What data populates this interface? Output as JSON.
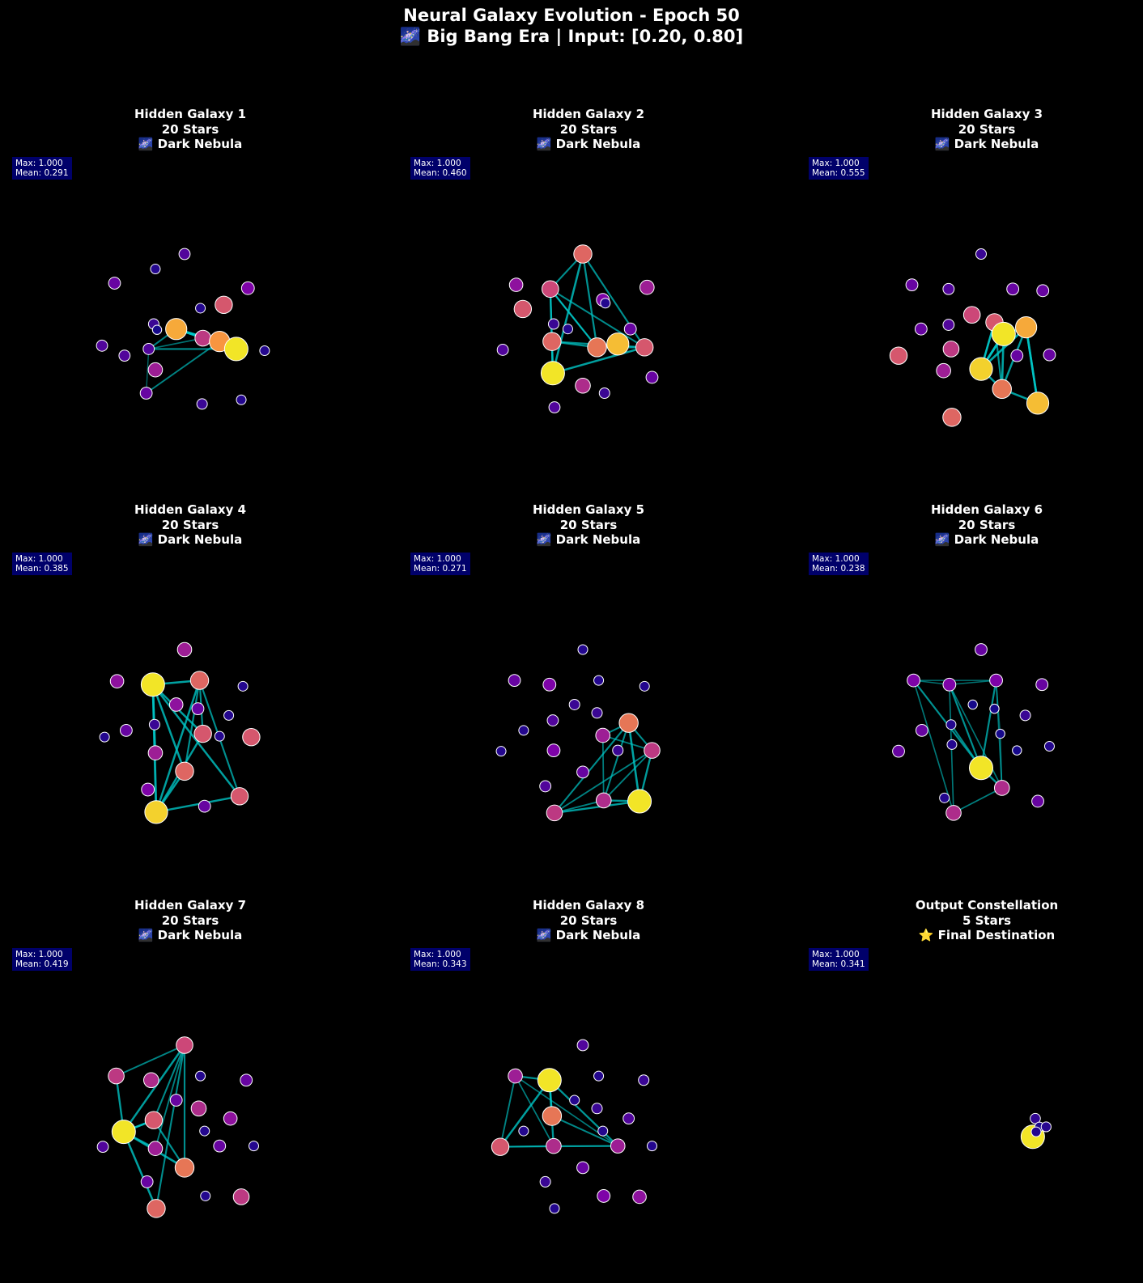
{
  "title_line1": "Neural Galaxy Evolution - Epoch 50",
  "title_line2": "🌌 Big Bang Era | Input: [0.20, 0.80]",
  "chart_data": [
    {
      "type": "scatter",
      "title": [
        "Hidden Galaxy 1",
        "20 Stars",
        "🌌 Dark Nebula"
      ],
      "stats": {
        "max": "Max: 1.000",
        "mean": "Mean: 0.291"
      },
      "nodes": [
        [
          0.0,
          -1.0,
          0.15
        ],
        [
          0.47,
          -0.39,
          0.55
        ],
        [
          -0.84,
          -0.65,
          0.2
        ],
        [
          -0.1,
          -0.1,
          0.8
        ],
        [
          0.76,
          -0.59,
          0.25
        ],
        [
          0.96,
          0.16,
          0.05
        ],
        [
          0.22,
          0.01,
          0.45
        ],
        [
          0.42,
          0.05,
          0.75
        ],
        [
          -0.72,
          0.22,
          0.15
        ],
        [
          -0.37,
          -0.16,
          0.1
        ],
        [
          -0.35,
          -0.82,
          0.05
        ],
        [
          -0.46,
          0.67,
          0.2
        ],
        [
          -0.33,
          -0.09,
          0.02
        ],
        [
          -0.35,
          0.39,
          0.35
        ],
        [
          0.68,
          0.75,
          0.05
        ],
        [
          0.21,
          0.8,
          0.1
        ],
        [
          -0.43,
          0.14,
          0.15
        ],
        [
          0.19,
          -0.35,
          0.05
        ],
        [
          0.62,
          0.14,
          0.95
        ],
        [
          -0.99,
          0.1,
          0.15
        ]
      ],
      "edges": [
        [
          3,
          18
        ],
        [
          18,
          16
        ],
        [
          16,
          3
        ],
        [
          3,
          7
        ],
        [
          18,
          7
        ],
        [
          16,
          6
        ],
        [
          6,
          3
        ],
        [
          6,
          18
        ],
        [
          16,
          11
        ],
        [
          11,
          7
        ],
        [
          7,
          3
        ],
        [
          18,
          6
        ]
      ]
    },
    {
      "type": "scatter",
      "title": [
        "Hidden Galaxy 2",
        "20 Stars",
        "🌌 Dark Nebula"
      ],
      "stats": {
        "max": "Max: 1.000",
        "mean": "Mean: 0.460"
      },
      "nodes": [
        [
          0.0,
          -1.0,
          0.6
        ],
        [
          0.24,
          -0.45,
          0.25
        ],
        [
          -0.8,
          -0.63,
          0.3
        ],
        [
          -0.39,
          -0.58,
          0.5
        ],
        [
          0.77,
          -0.6,
          0.35
        ],
        [
          0.57,
          -0.1,
          0.2
        ],
        [
          0.17,
          0.12,
          0.65
        ],
        [
          0.42,
          0.08,
          0.85
        ],
        [
          -0.18,
          -0.1,
          0.05
        ],
        [
          -0.35,
          -0.16,
          0.1
        ],
        [
          -0.37,
          0.05,
          0.6
        ],
        [
          -0.96,
          0.15,
          0.15
        ],
        [
          -0.36,
          0.43,
          0.95
        ],
        [
          0.0,
          0.58,
          0.4
        ],
        [
          0.74,
          0.12,
          0.55
        ],
        [
          -0.72,
          -0.34,
          0.55
        ],
        [
          0.27,
          -0.41,
          0.05
        ],
        [
          0.83,
          0.48,
          0.2
        ],
        [
          -0.34,
          0.84,
          0.15
        ],
        [
          0.26,
          0.67,
          0.1
        ]
      ],
      "edges": [
        [
          0,
          3
        ],
        [
          0,
          14
        ],
        [
          3,
          14
        ],
        [
          3,
          12
        ],
        [
          12,
          14
        ],
        [
          0,
          12
        ],
        [
          3,
          10
        ],
        [
          10,
          14
        ],
        [
          6,
          14
        ],
        [
          6,
          3
        ],
        [
          6,
          10
        ],
        [
          0,
          6
        ],
        [
          12,
          10
        ],
        [
          3,
          6
        ]
      ]
    },
    {
      "type": "scatter",
      "title": [
        "Hidden Galaxy 3",
        "20 Stars",
        "🌌 Dark Nebula"
      ],
      "stats": {
        "max": "Max: 1.000",
        "mean": "Mean: 0.555"
      },
      "nodes": [
        [
          0.0,
          -1.0,
          0.1
        ],
        [
          0.38,
          -0.58,
          0.2
        ],
        [
          -0.83,
          -0.63,
          0.2
        ],
        [
          -0.39,
          -0.58,
          0.15
        ],
        [
          0.74,
          -0.56,
          0.2
        ],
        [
          0.16,
          -0.18,
          0.55
        ],
        [
          0.27,
          -0.04,
          0.95
        ],
        [
          0.54,
          -0.12,
          0.8
        ],
        [
          -0.39,
          -0.15,
          0.15
        ],
        [
          -0.72,
          -0.1,
          0.2
        ],
        [
          -0.36,
          0.14,
          0.45
        ],
        [
          -0.99,
          0.22,
          0.55
        ],
        [
          0.0,
          0.38,
          0.9
        ],
        [
          -0.45,
          0.4,
          0.35
        ],
        [
          0.43,
          0.22,
          0.2
        ],
        [
          0.82,
          0.21,
          0.2
        ],
        [
          0.25,
          0.62,
          0.65
        ],
        [
          0.68,
          0.79,
          0.85
        ],
        [
          -0.35,
          0.96,
          0.6
        ],
        [
          -0.11,
          -0.27,
          0.5
        ]
      ],
      "edges": [
        [
          12,
          6
        ],
        [
          12,
          7
        ],
        [
          12,
          5
        ],
        [
          6,
          7
        ],
        [
          6,
          16
        ],
        [
          7,
          16
        ],
        [
          7,
          17
        ],
        [
          16,
          17
        ],
        [
          5,
          12
        ],
        [
          5,
          16
        ],
        [
          6,
          5
        ],
        [
          12,
          16
        ],
        [
          6,
          12
        ],
        [
          17,
          7
        ]
      ]
    },
    {
      "type": "scatter",
      "title": [
        "Hidden Galaxy 4",
        "20 Stars",
        "🌌 Dark Nebula"
      ],
      "stats": {
        "max": "Max: 1.000",
        "mean": "Mean: 0.385"
      },
      "nodes": [
        [
          0.0,
          -1.0,
          0.35
        ],
        [
          0.18,
          -0.63,
          0.6
        ],
        [
          -0.81,
          -0.62,
          0.3
        ],
        [
          -0.38,
          -0.58,
          0.95
        ],
        [
          0.7,
          -0.56,
          0.05
        ],
        [
          -0.1,
          -0.34,
          0.3
        ],
        [
          0.16,
          -0.29,
          0.2
        ],
        [
          0.53,
          -0.21,
          0.05
        ],
        [
          -0.7,
          -0.03,
          0.2
        ],
        [
          0.22,
          0.01,
          0.55
        ],
        [
          -0.35,
          0.24,
          0.35
        ],
        [
          -0.96,
          0.05,
          0.05
        ],
        [
          0.0,
          0.46,
          0.6
        ],
        [
          -0.36,
          -0.1,
          0.1
        ],
        [
          0.42,
          0.04,
          0.05
        ],
        [
          0.8,
          0.05,
          0.55
        ],
        [
          0.24,
          0.88,
          0.2
        ],
        [
          -0.44,
          0.68,
          0.25
        ],
        [
          -0.34,
          0.95,
          0.9
        ],
        [
          0.66,
          0.76,
          0.55
        ]
      ],
      "edges": [
        [
          3,
          1
        ],
        [
          3,
          18
        ],
        [
          18,
          1
        ],
        [
          18,
          19
        ],
        [
          3,
          19
        ],
        [
          1,
          19
        ],
        [
          3,
          9
        ],
        [
          9,
          18
        ],
        [
          1,
          12
        ],
        [
          12,
          3
        ],
        [
          1,
          9
        ],
        [
          18,
          12
        ],
        [
          3,
          10
        ]
      ]
    },
    {
      "type": "scatter",
      "title": [
        "Hidden Galaxy 5",
        "20 Stars",
        "🌌 Dark Nebula"
      ],
      "stats": {
        "max": "Max: 1.000",
        "mean": "Mean: 0.271"
      },
      "nodes": [
        [
          0.0,
          -1.0,
          0.05
        ],
        [
          0.19,
          -0.63,
          0.05
        ],
        [
          -0.82,
          -0.63,
          0.2
        ],
        [
          -0.4,
          -0.58,
          0.25
        ],
        [
          0.74,
          -0.56,
          0.05
        ],
        [
          -0.1,
          -0.34,
          0.1
        ],
        [
          0.17,
          -0.24,
          0.1
        ],
        [
          0.55,
          -0.12,
          0.65
        ],
        [
          -0.36,
          -0.15,
          0.15
        ],
        [
          -0.71,
          -0.03,
          0.05
        ],
        [
          0.24,
          0.03,
          0.35
        ],
        [
          0.42,
          0.21,
          0.1
        ],
        [
          -0.35,
          0.21,
          0.25
        ],
        [
          0.83,
          0.21,
          0.45
        ],
        [
          0.0,
          0.47,
          0.2
        ],
        [
          -0.45,
          0.64,
          0.15
        ],
        [
          0.25,
          0.81,
          0.4
        ],
        [
          0.68,
          0.82,
          0.95
        ],
        [
          -0.34,
          0.96,
          0.45
        ],
        [
          -0.98,
          0.22,
          0.05
        ]
      ],
      "edges": [
        [
          7,
          10
        ],
        [
          7,
          13
        ],
        [
          7,
          17
        ],
        [
          13,
          17
        ],
        [
          17,
          18
        ],
        [
          18,
          16
        ],
        [
          16,
          13
        ],
        [
          10,
          16
        ],
        [
          16,
          17
        ],
        [
          7,
          16
        ],
        [
          13,
          18
        ],
        [
          18,
          7
        ],
        [
          10,
          13
        ]
      ]
    },
    {
      "type": "scatter",
      "title": [
        "Hidden Galaxy 6",
        "20 Stars",
        "🌌 Dark Nebula"
      ],
      "stats": {
        "max": "Max: 1.000",
        "mean": "Mean: 0.238"
      },
      "nodes": [
        [
          0.0,
          -1.0,
          0.2
        ],
        [
          0.18,
          -0.63,
          0.25
        ],
        [
          -0.81,
          -0.63,
          0.25
        ],
        [
          -0.38,
          -0.58,
          0.25
        ],
        [
          0.73,
          -0.58,
          0.2
        ],
        [
          -0.1,
          -0.34,
          0.02
        ],
        [
          0.16,
          -0.29,
          0.02
        ],
        [
          0.53,
          -0.21,
          0.1
        ],
        [
          -0.71,
          -0.03,
          0.2
        ],
        [
          0.23,
          0.01,
          0.02
        ],
        [
          -0.35,
          0.14,
          0.05
        ],
        [
          -0.99,
          0.22,
          0.2
        ],
        [
          0.0,
          0.42,
          0.95
        ],
        [
          -0.36,
          -0.1,
          0.05
        ],
        [
          0.43,
          0.21,
          0.02
        ],
        [
          0.82,
          0.16,
          0.05
        ],
        [
          0.25,
          0.66,
          0.4
        ],
        [
          -0.44,
          0.78,
          0.05
        ],
        [
          -0.33,
          0.96,
          0.4
        ],
        [
          0.68,
          0.82,
          0.2
        ]
      ],
      "edges": [
        [
          2,
          12
        ],
        [
          2,
          1
        ],
        [
          3,
          12
        ],
        [
          3,
          16
        ],
        [
          1,
          16
        ],
        [
          1,
          12
        ],
        [
          3,
          18
        ],
        [
          18,
          16
        ],
        [
          2,
          3
        ],
        [
          1,
          9
        ],
        [
          9,
          16
        ],
        [
          3,
          1
        ],
        [
          12,
          16
        ],
        [
          13,
          12
        ],
        [
          2,
          18
        ]
      ]
    },
    {
      "type": "scatter",
      "title": [
        "Hidden Galaxy 7",
        "20 Stars",
        "🌌 Dark Nebula"
      ],
      "stats": {
        "max": "Max: 1.000",
        "mean": "Mean: 0.419"
      },
      "nodes": [
        [
          0.0,
          -1.0,
          0.5
        ],
        [
          0.19,
          -0.63,
          0.05
        ],
        [
          -0.82,
          -0.63,
          0.45
        ],
        [
          -0.4,
          -0.58,
          0.4
        ],
        [
          0.74,
          -0.58,
          0.2
        ],
        [
          -0.1,
          -0.34,
          0.2
        ],
        [
          0.17,
          -0.24,
          0.4
        ],
        [
          0.55,
          -0.12,
          0.3
        ],
        [
          -0.37,
          -0.1,
          0.55
        ],
        [
          0.24,
          0.03,
          0.05
        ],
        [
          -0.73,
          0.04,
          0.95
        ],
        [
          0.42,
          0.21,
          0.2
        ],
        [
          -0.35,
          0.24,
          0.35
        ],
        [
          0.83,
          0.21,
          0.05
        ],
        [
          0.0,
          0.47,
          0.65
        ],
        [
          -0.45,
          0.64,
          0.2
        ],
        [
          0.25,
          0.81,
          0.05
        ],
        [
          0.68,
          0.82,
          0.45
        ],
        [
          -0.34,
          0.96,
          0.6
        ],
        [
          -0.98,
          0.22,
          0.15
        ]
      ],
      "edges": [
        [
          0,
          2
        ],
        [
          0,
          10
        ],
        [
          2,
          10
        ],
        [
          10,
          8
        ],
        [
          8,
          0
        ],
        [
          0,
          14
        ],
        [
          10,
          14
        ],
        [
          0,
          18
        ],
        [
          10,
          18
        ],
        [
          8,
          14
        ],
        [
          0,
          12
        ],
        [
          10,
          12
        ],
        [
          8,
          10
        ]
      ]
    },
    {
      "type": "scatter",
      "title": [
        "Hidden Galaxy 8",
        "20 Stars",
        "🌌 Dark Nebula"
      ],
      "stats": {
        "max": "Max: 1.000",
        "mean": "Mean: 0.343"
      },
      "nodes": [
        [
          0.0,
          -1.0,
          0.15
        ],
        [
          0.19,
          -0.63,
          0.05
        ],
        [
          -0.81,
          -0.63,
          0.35
        ],
        [
          -0.4,
          -0.58,
          0.95
        ],
        [
          0.73,
          -0.58,
          0.1
        ],
        [
          -0.1,
          -0.34,
          0.05
        ],
        [
          0.17,
          -0.24,
          0.1
        ],
        [
          0.55,
          -0.12,
          0.15
        ],
        [
          -0.37,
          -0.15,
          0.65
        ],
        [
          0.24,
          0.03,
          0.05
        ],
        [
          -0.71,
          0.03,
          0.05
        ],
        [
          0.42,
          0.21,
          0.35
        ],
        [
          -0.35,
          0.21,
          0.4
        ],
        [
          0.83,
          0.21,
          0.05
        ],
        [
          -0.99,
          0.22,
          0.55
        ],
        [
          0.0,
          0.47,
          0.2
        ],
        [
          -0.45,
          0.64,
          0.1
        ],
        [
          0.25,
          0.81,
          0.25
        ],
        [
          0.68,
          0.82,
          0.3
        ],
        [
          -0.34,
          0.96,
          0.05
        ]
      ],
      "edges": [
        [
          3,
          2
        ],
        [
          3,
          14
        ],
        [
          2,
          14
        ],
        [
          14,
          11
        ],
        [
          3,
          11
        ],
        [
          2,
          11
        ],
        [
          3,
          12
        ],
        [
          12,
          11
        ],
        [
          14,
          12
        ],
        [
          2,
          12
        ],
        [
          3,
          8
        ],
        [
          8,
          11
        ]
      ]
    },
    {
      "type": "scatter",
      "title": [
        "Output Constellation",
        "5 Stars",
        "⭐ Final Destination"
      ],
      "stats": {
        "max": "Max: 1.000",
        "mean": "Mean: 0.341"
      },
      "nodes": [
        [
          0.62,
          0.1,
          0.95
        ],
        [
          0.65,
          -0.12,
          0.08
        ],
        [
          0.7,
          -0.02,
          0.03
        ],
        [
          0.78,
          -0.02,
          0.06
        ],
        [
          0.66,
          0.04,
          0.05
        ]
      ],
      "edges": []
    }
  ],
  "colors": {
    "background": "#000000",
    "connection": "#00c8c8",
    "stats_box": "#00006a",
    "node_edge": "#ffffff"
  }
}
